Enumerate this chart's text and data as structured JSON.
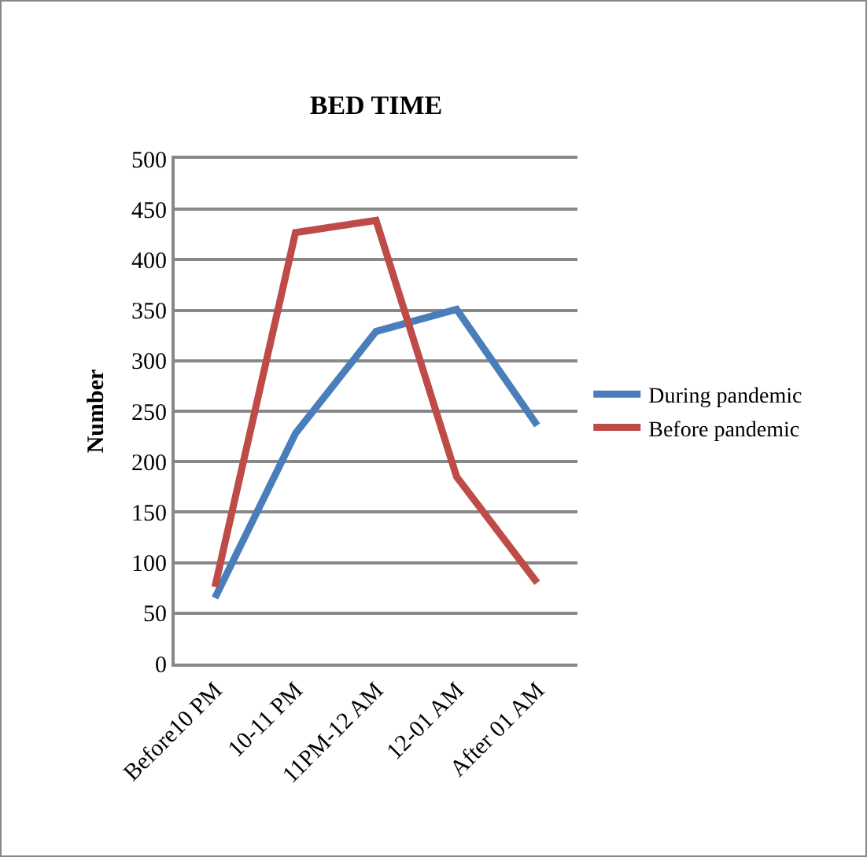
{
  "chart_data": {
    "type": "line",
    "title": "BED TIME",
    "ylabel": "Number",
    "categories": [
      "Before10 PM",
      "10-11 PM",
      "11PM-12 AM",
      "12-01 AM",
      "After 01 AM"
    ],
    "series": [
      {
        "name": "During pandemic",
        "color": "#4a7ebb",
        "values": [
          65,
          228,
          329,
          351,
          236
        ]
      },
      {
        "name": "Before pandemic",
        "color": "#be4b48",
        "values": [
          76,
          427,
          439,
          185,
          80
        ]
      }
    ],
    "ylim": [
      0,
      500
    ],
    "yticks": [
      0,
      50,
      100,
      150,
      200,
      250,
      300,
      350,
      400,
      450,
      500
    ],
    "grid": "y",
    "legend": "right",
    "marker": "none",
    "line_style": "solid"
  }
}
